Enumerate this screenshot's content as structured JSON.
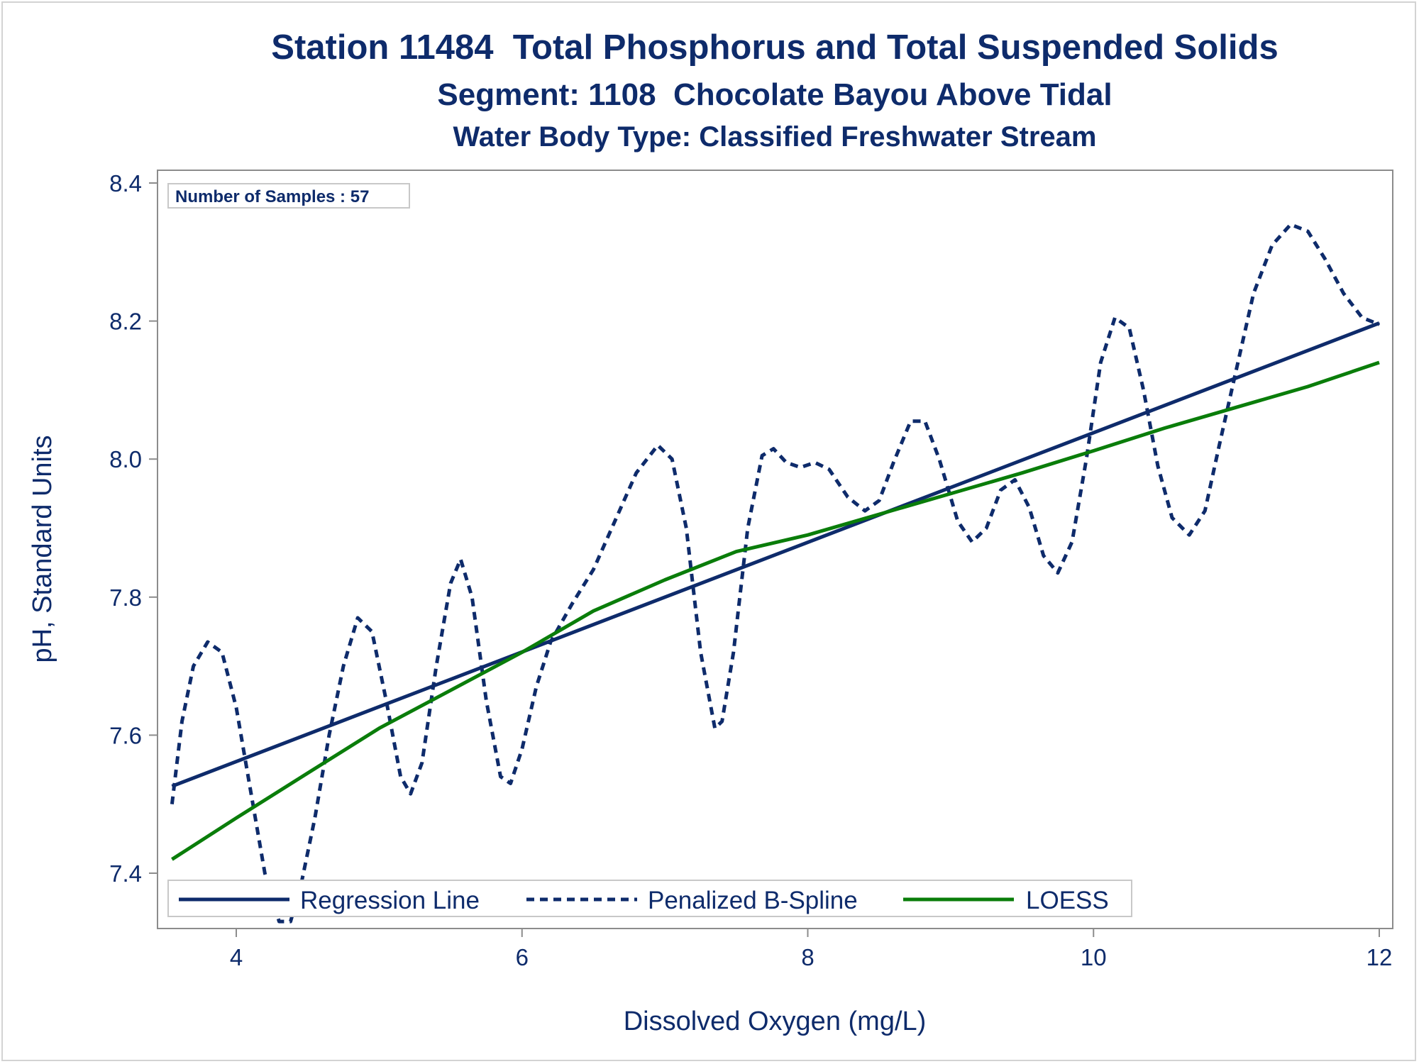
{
  "chart_data": {
    "type": "line",
    "title": "Station 11484  Total Phosphorus and Total Suspended Solids",
    "subtitle": "Segment: 1108  Chocolate Bayou Above Tidal",
    "subtitle2": "Water Body Type: Classified Freshwater Stream",
    "xlabel": "Dissolved Oxygen (mg/L)",
    "ylabel": "pH, Standard Units",
    "xlim": [
      3.5,
      12.1
    ],
    "ylim": [
      7.33,
      8.41
    ],
    "xticks": [
      4,
      6,
      8,
      10,
      12
    ],
    "yticks": [
      7.4,
      7.6,
      7.8,
      8.0,
      8.2,
      8.4
    ],
    "xtick_labels": [
      "4",
      "6",
      "8",
      "10",
      "12"
    ],
    "ytick_labels": [
      "7.4",
      "7.6",
      "7.8",
      "8.0",
      "8.2",
      "8.4"
    ],
    "inset_text": "Number of Samples : 57",
    "legend_position": "bottom-left inside",
    "series": [
      {
        "name": "Regression Line",
        "style": "solid",
        "color": "#0e2b6b",
        "points": [
          [
            3.55,
            7.526
          ],
          [
            12.0,
            8.197
          ]
        ]
      },
      {
        "name": "Penalized B-Spline",
        "style": "dashed",
        "color": "#0e2b6b",
        "points": [
          [
            3.55,
            7.5
          ],
          [
            3.62,
            7.62
          ],
          [
            3.7,
            7.7
          ],
          [
            3.8,
            7.735
          ],
          [
            3.9,
            7.72
          ],
          [
            4.0,
            7.64
          ],
          [
            4.1,
            7.52
          ],
          [
            4.2,
            7.4
          ],
          [
            4.3,
            7.33
          ],
          [
            4.38,
            7.33
          ],
          [
            4.45,
            7.38
          ],
          [
            4.55,
            7.48
          ],
          [
            4.65,
            7.6
          ],
          [
            4.75,
            7.7
          ],
          [
            4.85,
            7.77
          ],
          [
            4.95,
            7.75
          ],
          [
            5.05,
            7.65
          ],
          [
            5.15,
            7.54
          ],
          [
            5.22,
            7.515
          ],
          [
            5.3,
            7.56
          ],
          [
            5.4,
            7.7
          ],
          [
            5.5,
            7.82
          ],
          [
            5.57,
            7.855
          ],
          [
            5.65,
            7.8
          ],
          [
            5.75,
            7.65
          ],
          [
            5.85,
            7.54
          ],
          [
            5.92,
            7.53
          ],
          [
            6.0,
            7.58
          ],
          [
            6.1,
            7.67
          ],
          [
            6.2,
            7.735
          ],
          [
            6.35,
            7.79
          ],
          [
            6.5,
            7.84
          ],
          [
            6.65,
            7.91
          ],
          [
            6.8,
            7.98
          ],
          [
            6.95,
            8.02
          ],
          [
            7.05,
            8.0
          ],
          [
            7.15,
            7.9
          ],
          [
            7.25,
            7.72
          ],
          [
            7.35,
            7.61
          ],
          [
            7.4,
            7.62
          ],
          [
            7.48,
            7.72
          ],
          [
            7.58,
            7.9
          ],
          [
            7.68,
            8.005
          ],
          [
            7.76,
            8.015
          ],
          [
            7.85,
            7.995
          ],
          [
            7.95,
            7.988
          ],
          [
            8.05,
            7.995
          ],
          [
            8.15,
            7.985
          ],
          [
            8.28,
            7.945
          ],
          [
            8.4,
            7.925
          ],
          [
            8.5,
            7.94
          ],
          [
            8.6,
            7.995
          ],
          [
            8.72,
            8.055
          ],
          [
            8.82,
            8.055
          ],
          [
            8.92,
            8.0
          ],
          [
            9.05,
            7.91
          ],
          [
            9.15,
            7.88
          ],
          [
            9.25,
            7.9
          ],
          [
            9.35,
            7.955
          ],
          [
            9.45,
            7.97
          ],
          [
            9.55,
            7.93
          ],
          [
            9.65,
            7.86
          ],
          [
            9.75,
            7.835
          ],
          [
            9.85,
            7.88
          ],
          [
            9.95,
            8.0
          ],
          [
            10.05,
            8.14
          ],
          [
            10.15,
            8.205
          ],
          [
            10.25,
            8.19
          ],
          [
            10.35,
            8.1
          ],
          [
            10.45,
            7.99
          ],
          [
            10.55,
            7.915
          ],
          [
            10.67,
            7.89
          ],
          [
            10.78,
            7.925
          ],
          [
            10.88,
            8.02
          ],
          [
            11.0,
            8.13
          ],
          [
            11.12,
            8.24
          ],
          [
            11.25,
            8.31
          ],
          [
            11.38,
            8.34
          ],
          [
            11.5,
            8.33
          ],
          [
            11.62,
            8.29
          ],
          [
            11.75,
            8.24
          ],
          [
            11.88,
            8.205
          ],
          [
            12.0,
            8.195
          ]
        ]
      },
      {
        "name": "LOESS",
        "style": "solid",
        "color": "#0a7d0a",
        "points": [
          [
            3.55,
            7.42
          ],
          [
            4.0,
            7.48
          ],
          [
            4.5,
            7.545
          ],
          [
            5.0,
            7.61
          ],
          [
            5.5,
            7.665
          ],
          [
            6.0,
            7.72
          ],
          [
            6.5,
            7.78
          ],
          [
            7.0,
            7.825
          ],
          [
            7.5,
            7.866
          ],
          [
            8.0,
            7.89
          ],
          [
            8.5,
            7.92
          ],
          [
            9.0,
            7.95
          ],
          [
            9.5,
            7.98
          ],
          [
            10.0,
            8.012
          ],
          [
            10.5,
            8.045
          ],
          [
            11.0,
            8.075
          ],
          [
            11.5,
            8.105
          ],
          [
            12.0,
            8.14
          ]
        ]
      }
    ]
  }
}
